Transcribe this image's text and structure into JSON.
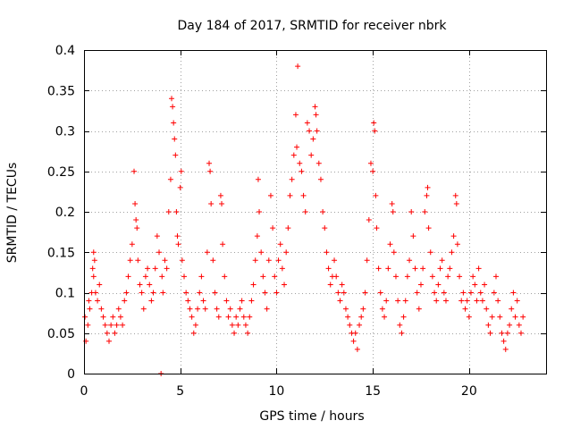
{
  "chart_data": {
    "type": "scatter",
    "title": "Day 184 of 2017, SRMTID for receiver nbrk",
    "xlabel": "GPS time / hours",
    "ylabel": "SRMTID / TECUs",
    "xlim": [
      0,
      24
    ],
    "ylim": [
      0,
      0.4
    ],
    "x_ticks": [
      0,
      5,
      10,
      15,
      20
    ],
    "x_tick_labels": [
      "0",
      "5",
      "10",
      "15",
      "20"
    ],
    "y_ticks": [
      0,
      0.05,
      0.1,
      0.15,
      0.2,
      0.25,
      0.3,
      0.35,
      0.4
    ],
    "y_tick_labels": [
      "0",
      "0.05",
      "0.1",
      "0.15",
      "0.2",
      "0.25",
      "0.3",
      "0.35",
      "0.4"
    ],
    "grid": true,
    "marker": "plus",
    "color": "#ff0000",
    "series": [
      {
        "name": "SRMTID",
        "points": [
          [
            0.05,
            0.07
          ],
          [
            0.1,
            0.04
          ],
          [
            0.2,
            0.06
          ],
          [
            0.25,
            0.09
          ],
          [
            0.3,
            0.08
          ],
          [
            0.4,
            0.1
          ],
          [
            0.45,
            0.13
          ],
          [
            0.5,
            0.15
          ],
          [
            0.5,
            0.12
          ],
          [
            0.55,
            0.14
          ],
          [
            0.6,
            0.1
          ],
          [
            0.7,
            0.09
          ],
          [
            0.8,
            0.11
          ],
          [
            0.9,
            0.08
          ],
          [
            1.0,
            0.07
          ],
          [
            1.1,
            0.06
          ],
          [
            1.2,
            0.05
          ],
          [
            1.3,
            0.04
          ],
          [
            1.4,
            0.06
          ],
          [
            1.5,
            0.07
          ],
          [
            1.6,
            0.05
          ],
          [
            1.7,
            0.06
          ],
          [
            1.8,
            0.08
          ],
          [
            1.9,
            0.07
          ],
          [
            2.0,
            0.06
          ],
          [
            2.1,
            0.09
          ],
          [
            2.2,
            0.1
          ],
          [
            2.3,
            0.12
          ],
          [
            2.4,
            0.14
          ],
          [
            2.5,
            0.16
          ],
          [
            2.6,
            0.25
          ],
          [
            2.65,
            0.21
          ],
          [
            2.7,
            0.19
          ],
          [
            2.75,
            0.18
          ],
          [
            2.8,
            0.14
          ],
          [
            2.9,
            0.11
          ],
          [
            3.0,
            0.1
          ],
          [
            3.1,
            0.08
          ],
          [
            3.2,
            0.12
          ],
          [
            3.3,
            0.13
          ],
          [
            3.4,
            0.11
          ],
          [
            3.5,
            0.09
          ],
          [
            3.6,
            0.1
          ],
          [
            3.7,
            0.13
          ],
          [
            3.8,
            0.17
          ],
          [
            3.9,
            0.15
          ],
          [
            4.0,
            0.0
          ],
          [
            4.05,
            0.12
          ],
          [
            4.1,
            0.1
          ],
          [
            4.2,
            0.14
          ],
          [
            4.3,
            0.13
          ],
          [
            4.4,
            0.2
          ],
          [
            4.5,
            0.24
          ],
          [
            4.55,
            0.34
          ],
          [
            4.6,
            0.33
          ],
          [
            4.65,
            0.31
          ],
          [
            4.7,
            0.29
          ],
          [
            4.75,
            0.27
          ],
          [
            4.8,
            0.2
          ],
          [
            4.85,
            0.17
          ],
          [
            4.9,
            0.16
          ],
          [
            5.0,
            0.23
          ],
          [
            5.05,
            0.25
          ],
          [
            5.1,
            0.14
          ],
          [
            5.2,
            0.12
          ],
          [
            5.3,
            0.1
          ],
          [
            5.4,
            0.09
          ],
          [
            5.5,
            0.08
          ],
          [
            5.6,
            0.07
          ],
          [
            5.7,
            0.05
          ],
          [
            5.8,
            0.06
          ],
          [
            5.9,
            0.08
          ],
          [
            6.0,
            0.1
          ],
          [
            6.1,
            0.12
          ],
          [
            6.2,
            0.09
          ],
          [
            6.3,
            0.08
          ],
          [
            6.4,
            0.15
          ],
          [
            6.5,
            0.26
          ],
          [
            6.55,
            0.25
          ],
          [
            6.6,
            0.21
          ],
          [
            6.7,
            0.14
          ],
          [
            6.8,
            0.1
          ],
          [
            6.9,
            0.08
          ],
          [
            7.0,
            0.07
          ],
          [
            7.1,
            0.22
          ],
          [
            7.15,
            0.21
          ],
          [
            7.2,
            0.16
          ],
          [
            7.3,
            0.12
          ],
          [
            7.4,
            0.09
          ],
          [
            7.5,
            0.07
          ],
          [
            7.6,
            0.08
          ],
          [
            7.7,
            0.06
          ],
          [
            7.8,
            0.05
          ],
          [
            7.9,
            0.07
          ],
          [
            8.0,
            0.06
          ],
          [
            8.1,
            0.08
          ],
          [
            8.2,
            0.09
          ],
          [
            8.3,
            0.07
          ],
          [
            8.4,
            0.06
          ],
          [
            8.5,
            0.05
          ],
          [
            8.6,
            0.07
          ],
          [
            8.7,
            0.09
          ],
          [
            8.8,
            0.11
          ],
          [
            8.9,
            0.14
          ],
          [
            9.0,
            0.17
          ],
          [
            9.05,
            0.24
          ],
          [
            9.1,
            0.2
          ],
          [
            9.2,
            0.15
          ],
          [
            9.3,
            0.12
          ],
          [
            9.4,
            0.1
          ],
          [
            9.5,
            0.08
          ],
          [
            9.6,
            0.14
          ],
          [
            9.7,
            0.22
          ],
          [
            9.8,
            0.18
          ],
          [
            9.9,
            0.12
          ],
          [
            10.0,
            0.1
          ],
          [
            10.1,
            0.14
          ],
          [
            10.2,
            0.16
          ],
          [
            10.3,
            0.13
          ],
          [
            10.4,
            0.11
          ],
          [
            10.5,
            0.15
          ],
          [
            10.6,
            0.18
          ],
          [
            10.7,
            0.22
          ],
          [
            10.8,
            0.24
          ],
          [
            10.9,
            0.27
          ],
          [
            11.0,
            0.32
          ],
          [
            11.05,
            0.28
          ],
          [
            11.1,
            0.38
          ],
          [
            11.2,
            0.26
          ],
          [
            11.3,
            0.25
          ],
          [
            11.4,
            0.22
          ],
          [
            11.5,
            0.2
          ],
          [
            11.6,
            0.31
          ],
          [
            11.7,
            0.3
          ],
          [
            11.8,
            0.27
          ],
          [
            11.9,
            0.29
          ],
          [
            12.0,
            0.33
          ],
          [
            12.05,
            0.32
          ],
          [
            12.1,
            0.3
          ],
          [
            12.2,
            0.26
          ],
          [
            12.3,
            0.24
          ],
          [
            12.4,
            0.2
          ],
          [
            12.5,
            0.18
          ],
          [
            12.6,
            0.15
          ],
          [
            12.7,
            0.13
          ],
          [
            12.8,
            0.11
          ],
          [
            12.9,
            0.12
          ],
          [
            13.0,
            0.14
          ],
          [
            13.1,
            0.12
          ],
          [
            13.2,
            0.1
          ],
          [
            13.3,
            0.09
          ],
          [
            13.4,
            0.11
          ],
          [
            13.5,
            0.1
          ],
          [
            13.6,
            0.08
          ],
          [
            13.7,
            0.07
          ],
          [
            13.8,
            0.06
          ],
          [
            13.9,
            0.05
          ],
          [
            14.0,
            0.04
          ],
          [
            14.1,
            0.05
          ],
          [
            14.2,
            0.03
          ],
          [
            14.3,
            0.06
          ],
          [
            14.4,
            0.07
          ],
          [
            14.5,
            0.08
          ],
          [
            14.6,
            0.1
          ],
          [
            14.7,
            0.14
          ],
          [
            14.8,
            0.19
          ],
          [
            14.9,
            0.26
          ],
          [
            15.0,
            0.25
          ],
          [
            15.05,
            0.31
          ],
          [
            15.1,
            0.3
          ],
          [
            15.15,
            0.22
          ],
          [
            15.2,
            0.18
          ],
          [
            15.3,
            0.13
          ],
          [
            15.4,
            0.1
          ],
          [
            15.5,
            0.08
          ],
          [
            15.6,
            0.07
          ],
          [
            15.7,
            0.09
          ],
          [
            15.8,
            0.13
          ],
          [
            15.9,
            0.16
          ],
          [
            16.0,
            0.21
          ],
          [
            16.05,
            0.2
          ],
          [
            16.1,
            0.15
          ],
          [
            16.2,
            0.12
          ],
          [
            16.3,
            0.09
          ],
          [
            16.4,
            0.06
          ],
          [
            16.5,
            0.05
          ],
          [
            16.6,
            0.07
          ],
          [
            16.7,
            0.09
          ],
          [
            16.8,
            0.12
          ],
          [
            16.9,
            0.14
          ],
          [
            17.0,
            0.2
          ],
          [
            17.1,
            0.17
          ],
          [
            17.2,
            0.13
          ],
          [
            17.3,
            0.1
          ],
          [
            17.4,
            0.08
          ],
          [
            17.5,
            0.11
          ],
          [
            17.6,
            0.13
          ],
          [
            17.7,
            0.2
          ],
          [
            17.8,
            0.22
          ],
          [
            17.85,
            0.23
          ],
          [
            17.9,
            0.18
          ],
          [
            18.0,
            0.15
          ],
          [
            18.1,
            0.12
          ],
          [
            18.2,
            0.1
          ],
          [
            18.3,
            0.09
          ],
          [
            18.4,
            0.11
          ],
          [
            18.5,
            0.13
          ],
          [
            18.6,
            0.14
          ],
          [
            18.7,
            0.1
          ],
          [
            18.8,
            0.09
          ],
          [
            18.9,
            0.12
          ],
          [
            19.0,
            0.13
          ],
          [
            19.1,
            0.15
          ],
          [
            19.2,
            0.17
          ],
          [
            19.3,
            0.22
          ],
          [
            19.35,
            0.21
          ],
          [
            19.4,
            0.16
          ],
          [
            19.5,
            0.12
          ],
          [
            19.6,
            0.09
          ],
          [
            19.7,
            0.1
          ],
          [
            19.8,
            0.08
          ],
          [
            19.9,
            0.09
          ],
          [
            20.0,
            0.07
          ],
          [
            20.1,
            0.1
          ],
          [
            20.2,
            0.12
          ],
          [
            20.3,
            0.11
          ],
          [
            20.4,
            0.09
          ],
          [
            20.5,
            0.13
          ],
          [
            20.6,
            0.1
          ],
          [
            20.7,
            0.09
          ],
          [
            20.8,
            0.11
          ],
          [
            20.9,
            0.08
          ],
          [
            21.0,
            0.06
          ],
          [
            21.1,
            0.05
          ],
          [
            21.2,
            0.07
          ],
          [
            21.3,
            0.1
          ],
          [
            21.4,
            0.12
          ],
          [
            21.5,
            0.09
          ],
          [
            21.6,
            0.07
          ],
          [
            21.7,
            0.05
          ],
          [
            21.8,
            0.04
          ],
          [
            21.9,
            0.03
          ],
          [
            22.0,
            0.05
          ],
          [
            22.1,
            0.06
          ],
          [
            22.2,
            0.08
          ],
          [
            22.3,
            0.1
          ],
          [
            22.4,
            0.07
          ],
          [
            22.5,
            0.09
          ],
          [
            22.6,
            0.06
          ],
          [
            22.7,
            0.05
          ],
          [
            22.8,
            0.07
          ]
        ]
      }
    ]
  }
}
